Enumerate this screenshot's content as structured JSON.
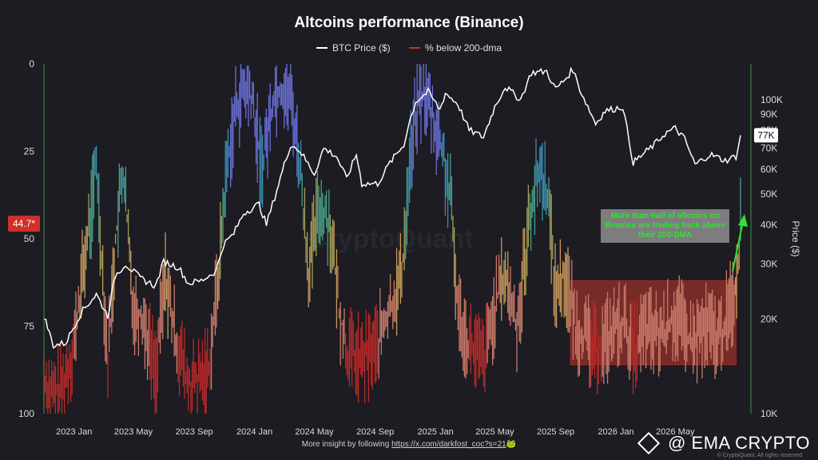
{
  "title": "Altcoins performance (Binance)",
  "legend": {
    "btc_label": "BTC Price ($)",
    "btc_color": "#ffffff",
    "pct_label": "% below 200-dma",
    "pct_color": "#c0392b"
  },
  "watermark": "CryptoQuant",
  "annotation": {
    "text": "More than half of altcoins on Binance are trading back above their 200-DMA",
    "text_color": "#33e033",
    "box_color": "#7d7d7d"
  },
  "footer": {
    "prefix": "More insight by following ",
    "link": "https://x.com/darkfost_coc?s=21",
    "suffix": "🐸"
  },
  "brand": "@ EMA CRYPTO",
  "copyright": "© CryptoQuant. All rights reserved",
  "chart_data": {
    "type": "line",
    "x_tick_labels": [
      "2023 Jan",
      "2023 May",
      "2023 Sep",
      "2024 Jan",
      "2024 May",
      "2024 Sep",
      "2025 Jan",
      "2025 May",
      "2025 Sep",
      "2026 Jan",
      "2026 May"
    ],
    "y_left": {
      "label": "",
      "ticks": [
        0,
        25,
        50,
        75,
        100
      ],
      "range": [
        0,
        100
      ],
      "inverted": true
    },
    "y_right": {
      "label": "Price ($)",
      "scale": "log",
      "tick_labels": [
        "10K",
        "20K",
        "30K",
        "40K",
        "50K",
        "60K",
        "70K",
        "80K",
        "90K",
        "100K"
      ],
      "ticks": [
        10000,
        20000,
        30000,
        40000,
        50000,
        60000,
        70000,
        80000,
        90000,
        100000
      ],
      "range": [
        10000,
        130000
      ]
    },
    "current_pct_label": "44.7*",
    "current_price_label": "77K",
    "x_range": [
      "2022-11-01",
      "2026-10-01"
    ],
    "series": [
      {
        "name": "BTC Price ($)",
        "color": "#ffffff",
        "axis": "right",
        "points": [
          [
            "2022-11-01",
            20500
          ],
          [
            "2022-11-20",
            16500
          ],
          [
            "2022-12-15",
            16800
          ],
          [
            "2023-01-15",
            21000
          ],
          [
            "2023-02-15",
            24000
          ],
          [
            "2023-03-10",
            20500
          ],
          [
            "2023-03-25",
            27500
          ],
          [
            "2023-04-15",
            30000
          ],
          [
            "2023-05-15",
            27000
          ],
          [
            "2023-06-15",
            25500
          ],
          [
            "2023-07-01",
            30500
          ],
          [
            "2023-08-01",
            29200
          ],
          [
            "2023-08-20",
            26000
          ],
          [
            "2023-09-15",
            26500
          ],
          [
            "2023-10-15",
            28500
          ],
          [
            "2023-10-30",
            34500
          ],
          [
            "2023-11-20",
            37500
          ],
          [
            "2023-12-10",
            43500
          ],
          [
            "2024-01-10",
            46500
          ],
          [
            "2024-01-25",
            40000
          ],
          [
            "2024-02-15",
            51500
          ],
          [
            "2024-03-01",
            62000
          ],
          [
            "2024-03-14",
            72000
          ],
          [
            "2024-04-01",
            69000
          ],
          [
            "2024-05-01",
            58000
          ],
          [
            "2024-05-20",
            70000
          ],
          [
            "2024-06-15",
            66000
          ],
          [
            "2024-07-05",
            56000
          ],
          [
            "2024-07-25",
            67000
          ],
          [
            "2024-08-05",
            54000
          ],
          [
            "2024-09-06",
            54000
          ],
          [
            "2024-10-01",
            63000
          ],
          [
            "2024-10-29",
            72000
          ],
          [
            "2024-11-12",
            88000
          ],
          [
            "2024-11-22",
            98500
          ],
          [
            "2024-12-17",
            106000
          ],
          [
            "2025-01-10",
            93000
          ],
          [
            "2025-01-21",
            105000
          ],
          [
            "2025-02-15",
            97000
          ],
          [
            "2025-03-10",
            80000
          ],
          [
            "2025-04-08",
            76000
          ],
          [
            "2025-05-01",
            95000
          ],
          [
            "2025-05-22",
            110000
          ],
          [
            "2025-06-22",
            100000
          ],
          [
            "2025-07-14",
            122000
          ],
          [
            "2025-08-14",
            123000
          ],
          [
            "2025-09-01",
            108000
          ],
          [
            "2025-09-20",
            116000
          ],
          [
            "2025-10-06",
            125000
          ],
          [
            "2025-10-20",
            108000
          ],
          [
            "2025-11-21",
            84000
          ],
          [
            "2025-12-10",
            92000
          ],
          [
            "2026-01-15",
            95000
          ],
          [
            "2026-02-05",
            63000
          ],
          [
            "2026-02-20",
            66000
          ],
          [
            "2026-03-20",
            72000
          ],
          [
            "2026-04-10",
            78000
          ],
          [
            "2026-05-01",
            81000
          ],
          [
            "2026-05-20",
            75000
          ],
          [
            "2026-06-10",
            62000
          ],
          [
            "2026-07-10",
            67000
          ],
          [
            "2026-08-10",
            64000
          ],
          [
            "2026-09-01",
            66000
          ],
          [
            "2026-09-10",
            77000
          ]
        ]
      },
      {
        "name": "% below 200-dma",
        "color_gradient": "red (high) to blue (low)",
        "axis": "left",
        "points": [
          [
            "2022-11-01",
            90
          ],
          [
            "2022-11-20",
            95
          ],
          [
            "2022-12-10",
            92
          ],
          [
            "2023-01-01",
            80
          ],
          [
            "2023-01-20",
            58
          ],
          [
            "2023-02-05",
            42
          ],
          [
            "2023-02-15",
            28
          ],
          [
            "2023-03-10",
            85
          ],
          [
            "2023-03-25",
            52
          ],
          [
            "2023-04-10",
            30
          ],
          [
            "2023-05-01",
            70
          ],
          [
            "2023-05-20",
            72
          ],
          [
            "2023-06-15",
            88
          ],
          [
            "2023-07-05",
            60
          ],
          [
            "2023-07-20",
            75
          ],
          [
            "2023-08-20",
            92
          ],
          [
            "2023-09-15",
            90
          ],
          [
            "2023-10-01",
            86
          ],
          [
            "2023-10-20",
            60
          ],
          [
            "2023-11-05",
            30
          ],
          [
            "2023-11-25",
            12
          ],
          [
            "2023-12-10",
            8
          ],
          [
            "2023-12-25",
            9
          ],
          [
            "2024-01-15",
            30
          ],
          [
            "2024-02-10",
            8
          ],
          [
            "2024-03-01",
            7
          ],
          [
            "2024-03-15",
            10
          ],
          [
            "2024-04-01",
            28
          ],
          [
            "2024-04-20",
            60
          ],
          [
            "2024-05-10",
            40
          ],
          [
            "2024-06-01",
            45
          ],
          [
            "2024-06-20",
            70
          ],
          [
            "2024-07-05",
            82
          ],
          [
            "2024-08-05",
            85
          ],
          [
            "2024-09-06",
            80
          ],
          [
            "2024-10-01",
            70
          ],
          [
            "2024-10-25",
            60
          ],
          [
            "2024-11-10",
            28
          ],
          [
            "2024-11-25",
            12
          ],
          [
            "2024-12-10",
            8
          ],
          [
            "2024-12-25",
            15
          ],
          [
            "2025-01-15",
            25
          ],
          [
            "2025-02-01",
            40
          ],
          [
            "2025-02-15",
            70
          ],
          [
            "2025-03-10",
            80
          ],
          [
            "2025-04-08",
            85
          ],
          [
            "2025-05-01",
            70
          ],
          [
            "2025-05-20",
            60
          ],
          [
            "2025-06-15",
            75
          ],
          [
            "2025-07-14",
            40
          ],
          [
            "2025-08-01",
            30
          ],
          [
            "2025-08-14",
            35
          ],
          [
            "2025-09-01",
            65
          ],
          [
            "2025-09-20",
            60
          ],
          [
            "2025-10-11",
            75
          ],
          [
            "2025-11-21",
            82
          ],
          [
            "2025-12-15",
            78
          ],
          [
            "2026-01-15",
            74
          ],
          [
            "2026-02-05",
            82
          ],
          [
            "2026-03-01",
            76
          ],
          [
            "2026-04-01",
            78
          ],
          [
            "2026-05-01",
            72
          ],
          [
            "2026-06-01",
            80
          ],
          [
            "2026-07-01",
            76
          ],
          [
            "2026-08-01",
            78
          ],
          [
            "2026-09-01",
            64
          ],
          [
            "2026-09-10",
            44.7
          ]
        ]
      }
    ],
    "highlight_box": {
      "x_start": "2025-10-01",
      "x_end": "2026-09-01",
      "y_top": 62,
      "y_bottom": 86,
      "color": "#c0392b"
    }
  }
}
